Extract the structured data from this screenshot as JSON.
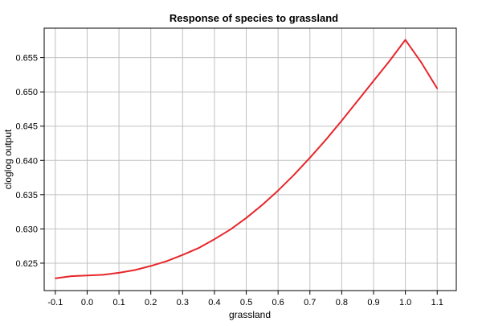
{
  "chart_data": {
    "type": "line",
    "title": "Response of species to grassland",
    "xlabel": "grassland",
    "ylabel": "cloglog output",
    "xlim": [
      -0.135,
      1.16
    ],
    "ylim": [
      0.621,
      0.6593
    ],
    "x_ticks": [
      -0.1,
      0.0,
      0.1,
      0.2,
      0.3,
      0.4,
      0.5,
      0.6,
      0.7,
      0.8,
      0.9,
      1.0,
      1.1
    ],
    "x_tick_labels": [
      "-0.1",
      "0.0",
      "0.1",
      "0.2",
      "0.3",
      "0.4",
      "0.5",
      "0.6",
      "0.7",
      "0.8",
      "0.9",
      "1.0",
      "1.1"
    ],
    "y_ticks": [
      0.625,
      0.63,
      0.635,
      0.64,
      0.645,
      0.65,
      0.655
    ],
    "y_tick_labels": [
      "0.625",
      "0.630",
      "0.635",
      "0.640",
      "0.645",
      "0.650",
      "0.655"
    ],
    "grid": true,
    "line_color": "#e8262a",
    "grid_color": "#c0c0c0",
    "series": [
      {
        "x": [
          -0.1,
          -0.05,
          0.0,
          0.05,
          0.1,
          0.15,
          0.2,
          0.25,
          0.3,
          0.35,
          0.4,
          0.45,
          0.5,
          0.55,
          0.6,
          0.65,
          0.7,
          0.75,
          0.8,
          0.85,
          0.9,
          0.95,
          1.0,
          1.05,
          1.1
        ],
        "y": [
          0.6228,
          0.6231,
          0.6232,
          0.6233,
          0.6236,
          0.624,
          0.6246,
          0.6253,
          0.6262,
          0.6272,
          0.6285,
          0.6299,
          0.6316,
          0.6335,
          0.6356,
          0.6379,
          0.6404,
          0.643,
          0.6458,
          0.6487,
          0.6516,
          0.6545,
          0.6576,
          0.6543,
          0.6505
        ]
      }
    ]
  }
}
